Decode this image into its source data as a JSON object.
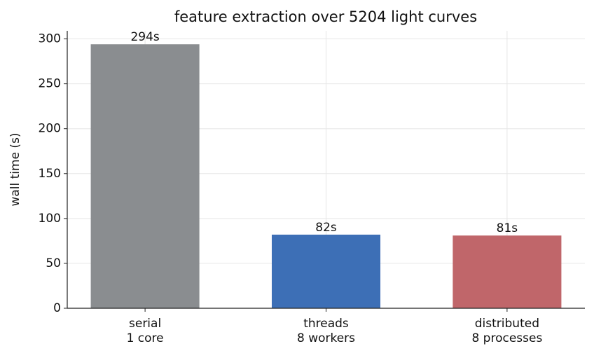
{
  "chart_data": {
    "type": "bar",
    "title": "feature extraction over 5204 light curves",
    "ylabel": "wall time (s)",
    "categories": [
      "serial\n1 core",
      "threads\n8 workers",
      "distributed\n8 processes"
    ],
    "values": [
      294,
      82,
      81
    ],
    "value_labels": [
      "294s",
      "82s",
      "81s"
    ],
    "colors": [
      "#8a8d90",
      "#3d6fb6",
      "#c0666a"
    ],
    "ylim": [
      0,
      309
    ],
    "yticks": [
      0,
      50,
      100,
      150,
      200,
      250,
      300
    ],
    "grid": true
  }
}
